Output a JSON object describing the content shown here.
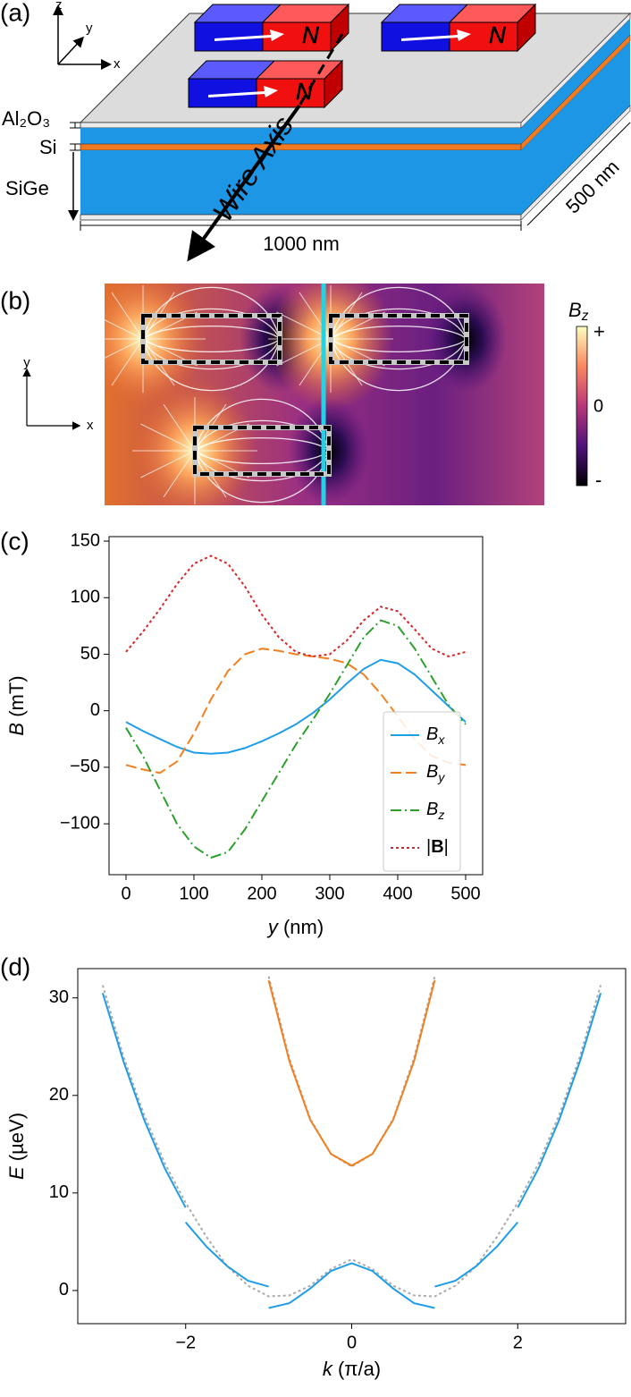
{
  "panel_labels": [
    "(a)",
    "(b)",
    "(c)",
    "(d)"
  ],
  "schematic": {
    "axes": [
      "z",
      "y",
      "x"
    ],
    "magnet_labels": [
      "N",
      "N",
      "N"
    ],
    "layers": [
      "Al₂O₃",
      "Si",
      "SiGe"
    ],
    "wire_axis": "Wire Axis",
    "length": "1000 nm",
    "width": "500 nm"
  },
  "field_map": {
    "axes": [
      "y",
      "x"
    ],
    "colorbar_label": "Bz",
    "colorbar_ticks": [
      "+",
      "0",
      "-"
    ]
  },
  "chart_data": [
    {
      "type": "line",
      "xlabel": "y (nm)",
      "ylabel": "B (mT)",
      "x": [
        0,
        25,
        50,
        75,
        100,
        125,
        150,
        175,
        200,
        225,
        250,
        275,
        300,
        325,
        350,
        375,
        400,
        425,
        450,
        475,
        500
      ],
      "xlim": [
        -25,
        525
      ],
      "xticks": [
        0,
        100,
        200,
        300,
        400,
        500
      ],
      "ylim": [
        -145,
        154
      ],
      "yticks": [
        {
          "value": -100,
          "label": "−100"
        },
        {
          "value": -50,
          "label": "−50"
        },
        0,
        50,
        100,
        150
      ],
      "legend": "lower right",
      "series": [
        {
          "name": "Bx",
          "color": "#1f9de6",
          "dash": "solid",
          "values": [
            -10,
            -18,
            -25,
            -32,
            -37,
            -38,
            -37,
            -33,
            -27,
            -20,
            -12,
            -2,
            10,
            24,
            37,
            45,
            42,
            32,
            18,
            4,
            -10
          ]
        },
        {
          "name": "By",
          "color": "#f08020",
          "dash": "dashed",
          "values": [
            -48,
            -52,
            -55,
            -45,
            -20,
            10,
            35,
            50,
            55,
            53,
            50,
            48,
            46,
            42,
            32,
            15,
            -5,
            -25,
            -40,
            -46,
            -48
          ]
        },
        {
          "name": "Bz",
          "color": "#2ca02c",
          "dash": "dashdot",
          "values": [
            -15,
            -40,
            -70,
            -100,
            -120,
            -130,
            -125,
            -105,
            -80,
            -55,
            -30,
            -8,
            15,
            40,
            65,
            80,
            75,
            55,
            30,
            5,
            -12
          ]
        },
        {
          "name": "|B|",
          "color": "#d62728",
          "dash": "dotted",
          "values": [
            52,
            70,
            90,
            112,
            130,
            137,
            130,
            110,
            85,
            65,
            52,
            48,
            50,
            62,
            80,
            92,
            88,
            72,
            55,
            48,
            52
          ]
        }
      ]
    },
    {
      "type": "line",
      "xlabel": "k (π/a)",
      "ylabel": "E (µeV)",
      "xlim": [
        -3.3,
        3.3
      ],
      "xticks": [
        {
          "value": -2,
          "label": "−2"
        },
        0,
        2
      ],
      "ylim": [
        -3.4,
        33
      ],
      "yticks": [
        0,
        10,
        20,
        30
      ],
      "series": [
        {
          "color": "#aaaaaa",
          "dash": "dotted",
          "x": [
            -3,
            -2.75,
            -2.5,
            -2.25,
            -2,
            -1.75,
            -1.5,
            -1.25,
            -1,
            -0.75,
            -0.5,
            -0.25,
            0,
            0.25,
            0.5,
            0.75,
            1,
            1.25,
            1.5,
            1.75,
            2,
            2.25,
            2.5,
            2.75,
            3
          ],
          "values": [
            31.3,
            24,
            18,
            13,
            9,
            5.5,
            2.5,
            0.5,
            -0.6,
            -0.5,
            0.5,
            2.2,
            3.2,
            2.2,
            0.5,
            -0.5,
            -0.6,
            0.5,
            2.5,
            5.5,
            9,
            13,
            18,
            24,
            31.3
          ]
        },
        {
          "color": "#aaaaaa",
          "dash": "dotted",
          "x": [
            -1,
            -0.75,
            -0.5,
            -0.25,
            0,
            0.25,
            0.5,
            0.75,
            1
          ],
          "values": [
            32.2,
            23.8,
            17.6,
            14,
            12.7,
            14,
            17.6,
            23.8,
            32.2
          ]
        },
        {
          "color": "#1f9de6",
          "dash": "solid",
          "x": [
            -3,
            -2.75,
            -2.5,
            -2.25,
            -2,
            null,
            -2,
            -1.75,
            -1.5,
            -1.25,
            -1,
            null,
            -1,
            -0.75,
            -0.5,
            -0.25,
            0,
            0.25,
            0.5,
            0.75,
            1,
            null,
            1,
            1.25,
            1.5,
            1.75,
            2,
            null,
            2,
            2.25,
            2.5,
            2.75,
            3
          ],
          "values": [
            30.5,
            23.5,
            17.5,
            12.5,
            8.5,
            null,
            7,
            4.5,
            2.5,
            1,
            0.4,
            null,
            -1.8,
            -1.3,
            0.2,
            2,
            2.8,
            2,
            0.2,
            -1.3,
            -1.8,
            null,
            0.4,
            1,
            2.5,
            4.5,
            7,
            null,
            8.5,
            12.5,
            17.5,
            23.5,
            30.5
          ]
        },
        {
          "color": "#f08020",
          "dash": "solid",
          "x": [
            -1,
            -0.75,
            -0.5,
            -0.25,
            0,
            0.25,
            0.5,
            0.75,
            1
          ],
          "values": [
            31.8,
            23.5,
            17.5,
            14,
            12.8,
            14,
            17.5,
            23.5,
            31.8
          ]
        }
      ]
    }
  ]
}
